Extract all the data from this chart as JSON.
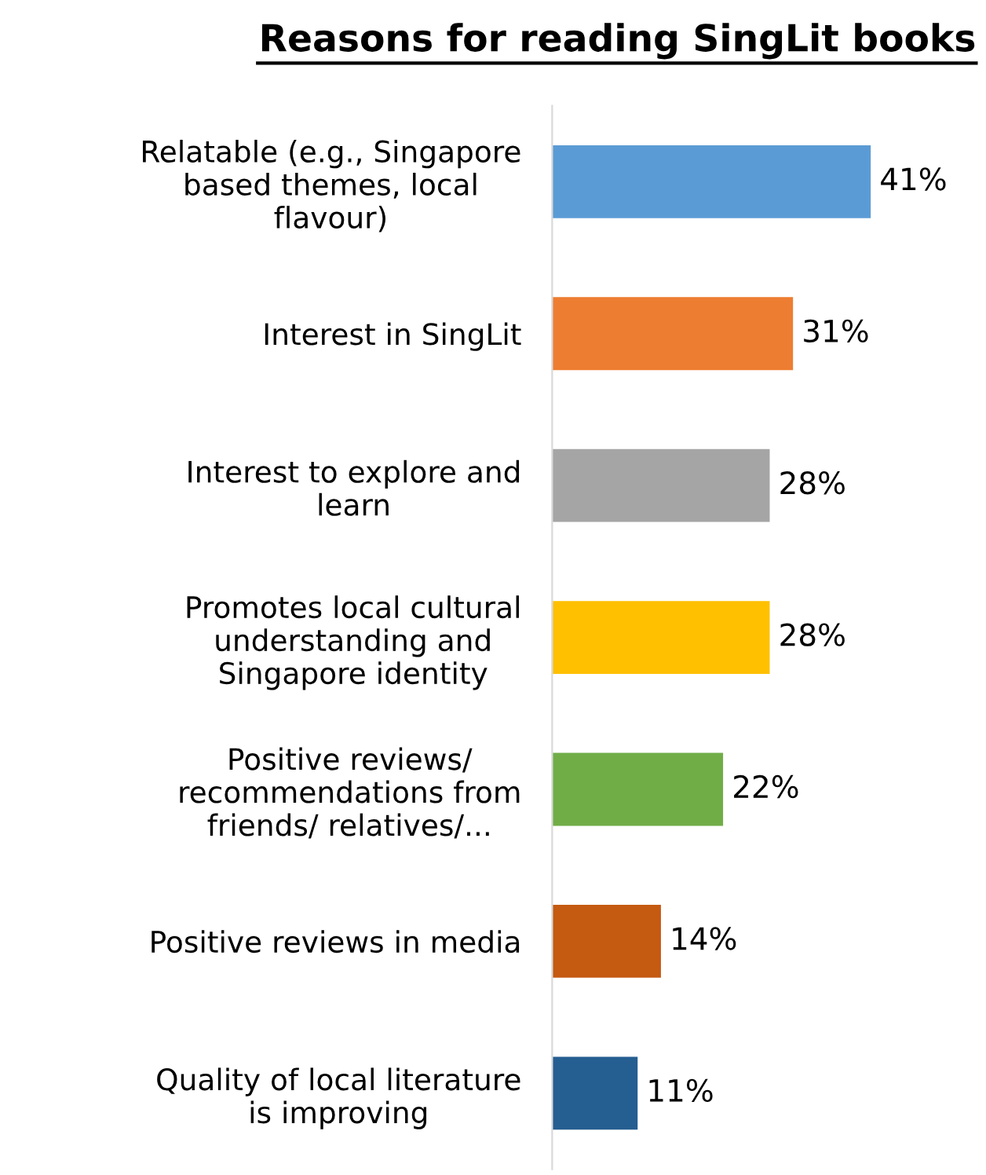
{
  "chart_data": {
    "type": "bar",
    "orientation": "horizontal",
    "title": "Reasons for reading SingLit books",
    "categories": [
      "Relatable (e.g., Singapore\nbased themes, local\nflavour)",
      "Interest in SingLit",
      "Interest to explore and\nlearn",
      "Promotes local cultural\nunderstanding and\nSingapore identity",
      "Positive reviews/\nrecommendations from\nfriends/ relatives/...",
      "Positive reviews in media",
      "Quality of local literature\nis improving"
    ],
    "values": [
      41,
      31,
      28,
      28,
      22,
      14,
      11
    ],
    "colors": [
      "#5b9bd5",
      "#ed7d31",
      "#a5a5a5",
      "#ffc000",
      "#70ad47",
      "#c55a11",
      "#255e91"
    ],
    "value_labels": [
      "41%",
      "31%",
      "28%",
      "28%",
      "22%",
      "14%",
      "11%"
    ],
    "grid": false,
    "legend": false
  }
}
